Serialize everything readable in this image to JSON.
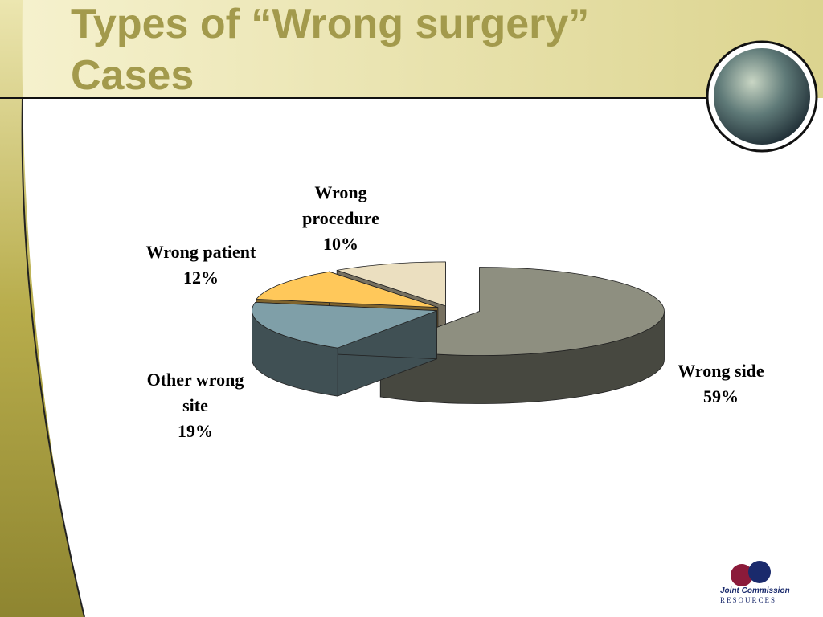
{
  "title": "Types of “Wrong surgery” Cases",
  "chart_data": {
    "type": "pie3d",
    "categories": [
      "Wrong side",
      "Other wrong site",
      "Wrong patient",
      "Wrong procedure"
    ],
    "values": [
      59,
      19,
      12,
      10
    ],
    "value_labels": [
      "59%",
      "19%",
      "12%",
      "10%"
    ],
    "colors": [
      "#8e8f80",
      "#7f9fa8",
      "#ffc85a",
      "#ebdfc0"
    ]
  },
  "logo": {
    "line1": "Joint Commission",
    "line2": "RESOURCES"
  }
}
